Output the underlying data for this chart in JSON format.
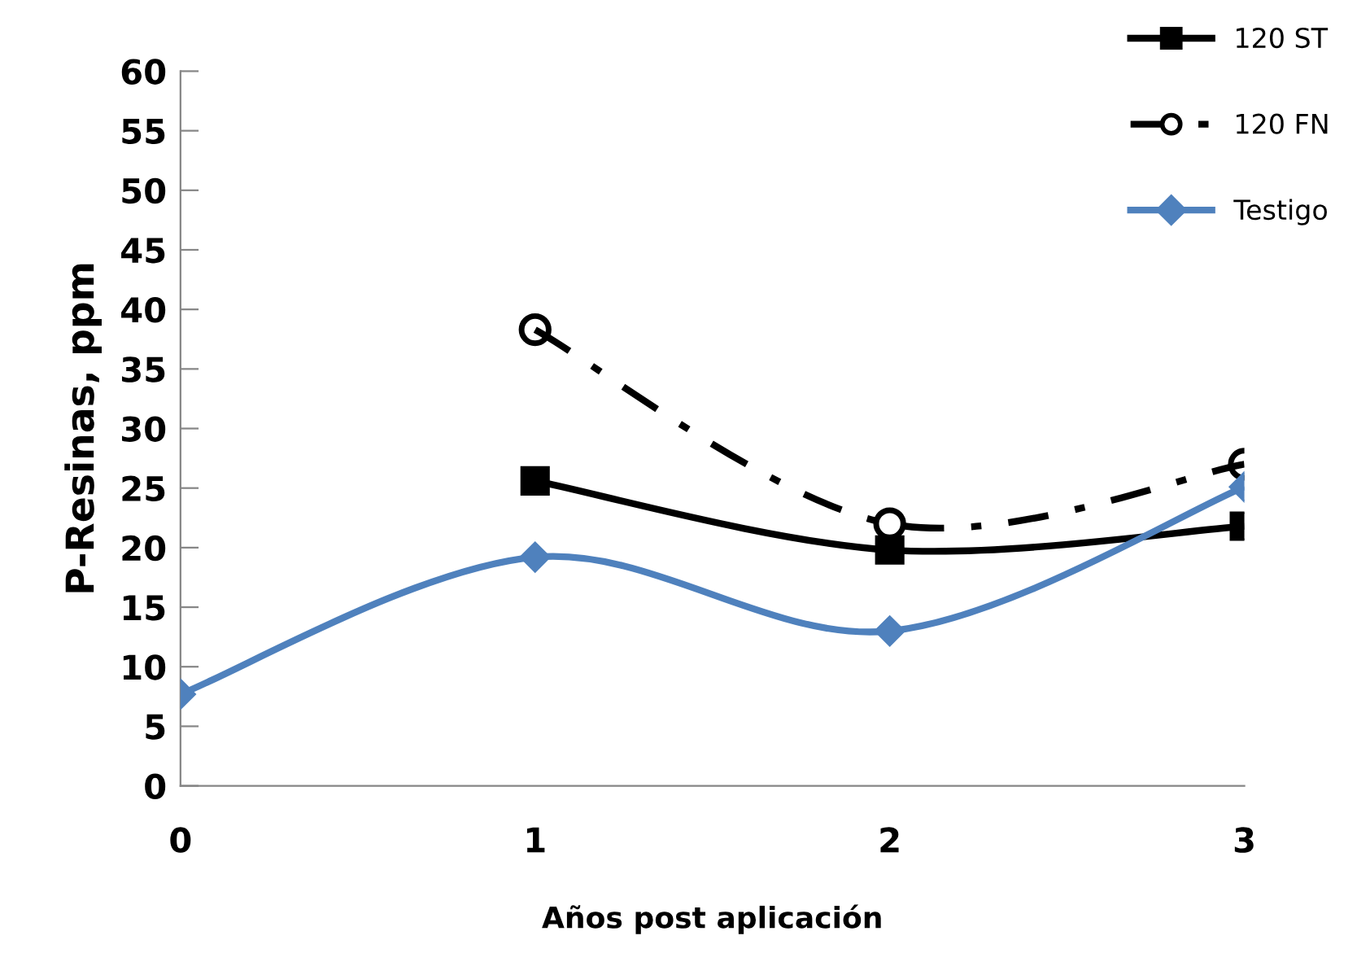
{
  "chart_data": {
    "type": "line",
    "xlabel": "Años post aplicación",
    "ylabel": "P-Resinas, ppm",
    "x": [
      0,
      1,
      2,
      3
    ],
    "xlim": [
      0,
      3
    ],
    "xticks": [
      0,
      1,
      2,
      3
    ],
    "ylim": [
      0,
      60
    ],
    "yticks": [
      0,
      5,
      10,
      15,
      20,
      25,
      30,
      35,
      40,
      45,
      50,
      55,
      60
    ],
    "grid": false,
    "legend": "top right",
    "series": [
      {
        "name": "120 ST",
        "color": "#000000",
        "marker": "square",
        "line_style": "solid",
        "values": [
          null,
          25.6,
          19.8,
          21.8
        ]
      },
      {
        "name": "120 FN",
        "color": "#000000",
        "marker": "circle",
        "line_style": "dashdot",
        "values": [
          null,
          38.3,
          22.0,
          27.0
        ]
      },
      {
        "name": "Testigo",
        "color": "#4f81bd",
        "marker": "diamond",
        "line_style": "solid",
        "values": [
          7.7,
          19.2,
          13.0,
          25.1
        ]
      }
    ]
  }
}
